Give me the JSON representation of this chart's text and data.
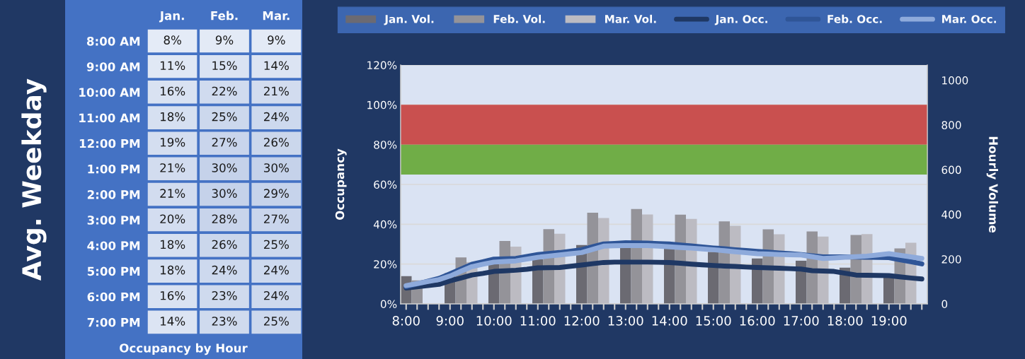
{
  "chart_data": [
    {
      "type": "heatmap",
      "title": "Occupancy by Hour",
      "ylabel": "Avg. Weekday",
      "categories": [
        "Jan.",
        "Feb.",
        "Mar."
      ],
      "y_categories": [
        "8:00 AM",
        "9:00 AM",
        "10:00 AM",
        "11:00 AM",
        "12:00 PM",
        "1:00 PM",
        "2:00 PM",
        "3:00 PM",
        "4:00 PM",
        "5:00 PM",
        "6:00 PM",
        "7:00 PM"
      ],
      "cells": [
        [
          8,
          9,
          9
        ],
        [
          11,
          15,
          14
        ],
        [
          16,
          22,
          21
        ],
        [
          18,
          25,
          24
        ],
        [
          19,
          27,
          26
        ],
        [
          21,
          30,
          30
        ],
        [
          21,
          30,
          29
        ],
        [
          20,
          28,
          27
        ],
        [
          18,
          26,
          25
        ],
        [
          18,
          24,
          24
        ],
        [
          16,
          23,
          24
        ],
        [
          14,
          23,
          25
        ]
      ],
      "cell_labels": [
        [
          "8%",
          "9%",
          "9%"
        ],
        [
          "11%",
          "15%",
          "14%"
        ],
        [
          "16%",
          "22%",
          "21%"
        ],
        [
          "18%",
          "25%",
          "24%"
        ],
        [
          "19%",
          "27%",
          "26%"
        ],
        [
          "21%",
          "30%",
          "30%"
        ],
        [
          "21%",
          "30%",
          "29%"
        ],
        [
          "20%",
          "28%",
          "27%"
        ],
        [
          "18%",
          "26%",
          "25%"
        ],
        [
          "18%",
          "24%",
          "24%"
        ],
        [
          "16%",
          "23%",
          "24%"
        ],
        [
          "14%",
          "23%",
          "25%"
        ]
      ]
    },
    {
      "type": "bar",
      "ylabel": "Occupancy",
      "y2label": "Hourly Volume",
      "legend": "top",
      "grid": "y",
      "categories": [
        "8:00",
        null,
        null,
        null,
        "9:00",
        null,
        null,
        null,
        "10:00",
        null,
        null,
        null,
        "11:00",
        null,
        null,
        null,
        "12:00",
        null,
        null,
        null,
        "13:00",
        null,
        null,
        null,
        "14:00",
        null,
        null,
        null,
        "15:00",
        null,
        null,
        null,
        "16:00",
        null,
        null,
        null,
        "17:00",
        null,
        null,
        null,
        "18:00",
        null,
        null,
        null,
        "19:00",
        null,
        null,
        null
      ],
      "series": [
        {
          "name": "Jan. Vol.",
          "type": "bar",
          "axis": "y2",
          "color": "#6b6a72",
          "values": [
            124,
            null,
            null,
            null,
            137,
            null,
            null,
            null,
            177,
            null,
            null,
            null,
            200,
            null,
            null,
            null,
            263,
            null,
            null,
            null,
            255,
            null,
            null,
            null,
            248,
            null,
            null,
            null,
            232,
            null,
            null,
            null,
            203,
            null,
            null,
            null,
            193,
            null,
            null,
            null,
            162,
            null,
            null,
            null,
            125,
            null,
            null,
            null
          ]
        },
        {
          "name": "Feb. Vol.",
          "type": "bar",
          "axis": "y2",
          "color": "#949399",
          "values": [
            null,
            105,
            null,
            null,
            null,
            208,
            null,
            null,
            null,
            281,
            null,
            null,
            null,
            334,
            null,
            null,
            null,
            408,
            null,
            null,
            null,
            424,
            null,
            null,
            null,
            399,
            null,
            null,
            null,
            369,
            null,
            null,
            null,
            333,
            null,
            null,
            null,
            324,
            null,
            null,
            null,
            308,
            null,
            null,
            null,
            248,
            null,
            null
          ]
        },
        {
          "name": "Mar. Vol.",
          "type": "bar",
          "axis": "y2",
          "color": "#bcbbc2",
          "values": [
            null,
            null,
            null,
            null,
            null,
            null,
            187,
            null,
            null,
            null,
            256,
            null,
            null,
            null,
            314,
            null,
            null,
            null,
            384,
            null,
            null,
            null,
            400,
            null,
            null,
            null,
            380,
            null,
            null,
            null,
            349,
            null,
            null,
            null,
            311,
            null,
            null,
            null,
            301,
            null,
            null,
            null,
            312,
            null,
            null,
            null,
            273,
            null
          ]
        },
        {
          "name": "Jan. Occ.",
          "type": "line",
          "color": "#1f3864",
          "values": [
            8.0,
            8.6,
            9.2,
            9.8,
            11.6,
            13,
            14.5,
            15.3,
            16.3,
            16.6,
            16.9,
            17.4,
            18.1,
            18.2,
            18.3,
            18.9,
            19.5,
            20.2,
            20.8,
            21.0,
            21.0,
            21.0,
            21.0,
            20.9,
            20.8,
            20.4,
            20,
            19.6,
            19.3,
            19,
            18.8,
            18.5,
            18.3,
            18.1,
            17.9,
            17.7,
            17.5,
            16.7,
            16.5,
            16.3,
            15.4,
            14.5,
            14.4,
            14.3,
            14.2,
            13.6,
            13.0,
            12.5
          ]
        },
        {
          "name": "Feb. Occ.",
          "type": "line",
          "color": "#2f5597",
          "values": [
            8.6,
            10,
            11.4,
            12.8,
            15.1,
            17.5,
            19.9,
            21.2,
            22.5,
            22.6,
            22.8,
            23.8,
            24.8,
            25.3,
            25.8,
            26.5,
            27.2,
            28.7,
            30.1,
            30.4,
            30.7,
            30.6,
            30.5,
            30.3,
            30.1,
            29.6,
            29.1,
            28.6,
            28.1,
            27.7,
            27.2,
            26.8,
            26.4,
            26,
            25.6,
            25.2,
            24.8,
            24.2,
            23.6,
            23.6,
            23.6,
            23.5,
            23.4,
            23.3,
            23.2,
            22.2,
            21.2,
            20.1
          ]
        },
        {
          "name": "Mar. Occ.",
          "type": "line",
          "color": "#8eaadb",
          "values": [
            9.2,
            10.2,
            11.2,
            12.2,
            14,
            16.4,
            18.7,
            19.9,
            21.0,
            21.3,
            21.6,
            22.5,
            23.4,
            24,
            24.6,
            25.2,
            25.8,
            27.4,
            29.0,
            29.2,
            29.3,
            29.3,
            29.3,
            29.0,
            28.7,
            28.3,
            28,
            27.6,
            27.2,
            26.7,
            26.2,
            25.7,
            25.2,
            25.0,
            24.8,
            24.7,
            24.6,
            23.7,
            22.8,
            23.1,
            23.4,
            23.7,
            24.0,
            24.6,
            25.2,
            24.4,
            23.6,
            22.8
          ]
        }
      ],
      "ylim": [
        0,
        120
      ],
      "yticks": [
        {
          "value": 0,
          "label": "0%"
        },
        {
          "value": 20,
          "label": "20%"
        },
        {
          "value": 40,
          "label": "40%"
        },
        {
          "value": 60,
          "label": "60%"
        },
        {
          "value": 80,
          "label": "80%"
        },
        {
          "value": 100,
          "label": "100%"
        },
        {
          "value": 120,
          "label": "120%"
        }
      ],
      "y2lim": [
        0,
        1068
      ],
      "y2ticks": [
        0,
        200,
        400,
        600,
        800,
        1000
      ],
      "bands": [
        {
          "axis": "y",
          "from": 80,
          "to": 100,
          "color": "#c9504f"
        },
        {
          "axis": "y",
          "from": 65,
          "to": 80,
          "color": "#70ad47"
        }
      ]
    }
  ]
}
